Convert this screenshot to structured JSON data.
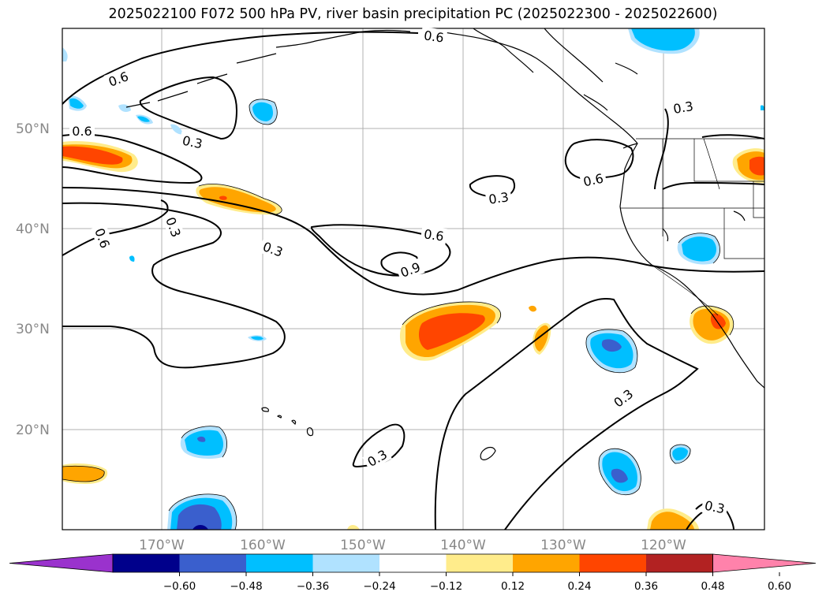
{
  "title": "2025022100 F072 500 hPa PV, river basin precipitation PC (2025022300 - 2025022600)",
  "map": {
    "lat_labels": [
      "50°N",
      "40°N",
      "30°N",
      "20°N"
    ],
    "lon_labels": [
      "170°W",
      "160°W",
      "150°W",
      "140°W",
      "130°W",
      "120°W"
    ],
    "contour_labels": [
      "0.6",
      "0.6",
      "0.6",
      "0.3",
      "0.6",
      "0.3",
      "0.6",
      "0.3",
      "0.3",
      "0.6",
      "0.3",
      "0.6",
      "0.9",
      "0.3",
      "0.3",
      "0.3"
    ]
  },
  "colorbar": {
    "ticks": [
      "−0.60",
      "−0.48",
      "−0.36",
      "−0.24",
      "−0.12",
      "0.12",
      "0.24",
      "0.36",
      "0.48",
      "0.60"
    ],
    "colors": [
      "#9a32cd",
      "#00008b",
      "#3a5fcd",
      "#00bfff",
      "#b0e2ff",
      "#ffffff",
      "#ffec8b",
      "#ffa500",
      "#ff4500",
      "#b22222",
      "#ff82ab"
    ]
  }
}
